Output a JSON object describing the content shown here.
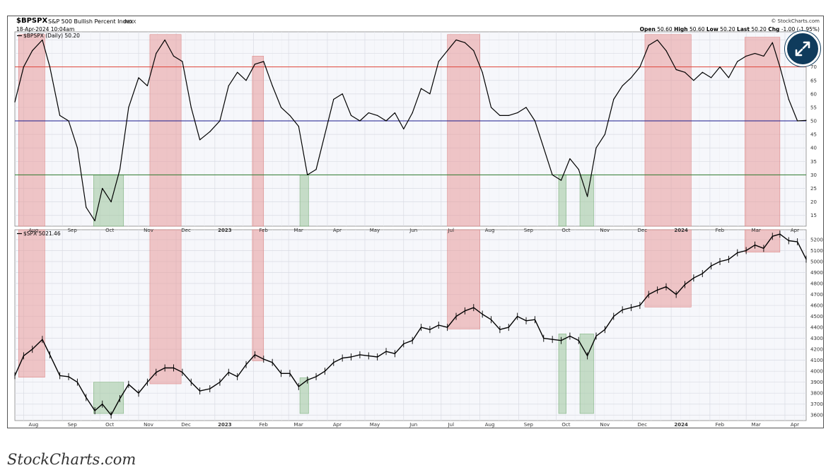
{
  "header": {
    "ticker": "$BPSPX",
    "name": "S&P 500 Bullish Percent Index",
    "exchange": "INDX",
    "timestamp": "18-Apr-2024 10:04am",
    "copyright": "© StockCharts.com",
    "quote_open_label": "Open",
    "quote_open": "50.60",
    "quote_high_label": "High",
    "quote_high": "50.60",
    "quote_low_label": "Low",
    "quote_low": "50.20",
    "quote_last_label": "Last",
    "quote_last": "50.20",
    "quote_chg_label": "Chg",
    "quote_chg": "-1.00 (-1.95%)"
  },
  "footer": {
    "brand": "StockCharts.com"
  },
  "expand_icon": "expand-arrows-icon",
  "colors": {
    "red_zone": "#e89a9a",
    "green_zone": "#9cc79c",
    "line_70": "#e0453a",
    "line_50": "#1a1a8c",
    "line_30": "#2e7a2e",
    "price": "#000000",
    "button": "#0f3b5c"
  },
  "chart_data": [
    {
      "type": "line",
      "title": "$BPSPX (Daily) 50.20",
      "x_ticks": [
        "Aug",
        "Sep",
        "Oct",
        "Nov",
        "Dec",
        "2023",
        "Feb",
        "Mar",
        "Apr",
        "May",
        "Jun",
        "Jul",
        "Aug",
        "Sep",
        "Oct",
        "Nov",
        "Dec",
        "2024",
        "Feb",
        "Mar",
        "Apr"
      ],
      "y_ticks": [
        15,
        20,
        25,
        30,
        35,
        40,
        45,
        50,
        55,
        60,
        65,
        70,
        75,
        80
      ],
      "ylim": [
        11,
        83
      ],
      "reference_lines": [
        70,
        50,
        30
      ],
      "x_range": [
        "2022-07-25",
        "2024-04-18"
      ],
      "series": [
        {
          "x": [
            "2022-07-25",
            "2022-08-01",
            "2022-08-08",
            "2022-08-16",
            "2022-08-22",
            "2022-08-30",
            "2022-09-06",
            "2022-09-13",
            "2022-09-20",
            "2022-09-27",
            "2022-10-03",
            "2022-10-10",
            "2022-10-17",
            "2022-10-24",
            "2022-11-01",
            "2022-11-08",
            "2022-11-15",
            "2022-11-22",
            "2022-11-29",
            "2022-12-06",
            "2022-12-13",
            "2022-12-20",
            "2022-12-28",
            "2023-01-05",
            "2023-01-12",
            "2023-01-19",
            "2023-01-26",
            "2023-02-02",
            "2023-02-09",
            "2023-02-16",
            "2023-02-23",
            "2023-03-02",
            "2023-03-09",
            "2023-03-16",
            "2023-03-23",
            "2023-03-30",
            "2023-04-06",
            "2023-04-13",
            "2023-04-20",
            "2023-04-27",
            "2023-05-04",
            "2023-05-11",
            "2023-05-18",
            "2023-05-25",
            "2023-06-01",
            "2023-06-08",
            "2023-06-15",
            "2023-06-22",
            "2023-06-29",
            "2023-07-06",
            "2023-07-13",
            "2023-07-20",
            "2023-07-27",
            "2023-08-03",
            "2023-08-10",
            "2023-08-17",
            "2023-08-24",
            "2023-08-31",
            "2023-09-07",
            "2023-09-14",
            "2023-09-21",
            "2023-09-28",
            "2023-10-05",
            "2023-10-12",
            "2023-10-19",
            "2023-10-26",
            "2023-11-02",
            "2023-11-09",
            "2023-11-16",
            "2023-11-23",
            "2023-11-30",
            "2023-12-07",
            "2023-12-14",
            "2023-12-21",
            "2023-12-28",
            "2024-01-05",
            "2024-01-12",
            "2024-01-19",
            "2024-01-26",
            "2024-02-02",
            "2024-02-09",
            "2024-02-16",
            "2024-02-23",
            "2024-03-01",
            "2024-03-08",
            "2024-03-15",
            "2024-03-22",
            "2024-03-28",
            "2024-04-04",
            "2024-04-11",
            "2024-04-18"
          ],
          "values": [
            57,
            70,
            76,
            80,
            70,
            52,
            50,
            40,
            18,
            13,
            25,
            20,
            32,
            55,
            66,
            63,
            75,
            80,
            74,
            72,
            55,
            43,
            46,
            50,
            63,
            68,
            65,
            71,
            72,
            63,
            55,
            52,
            48,
            30,
            32,
            45,
            58,
            60,
            52,
            50,
            53,
            52,
            50,
            53,
            47,
            53,
            62,
            60,
            72,
            76,
            80,
            79,
            76,
            68,
            55,
            52,
            52,
            53,
            55,
            50,
            40,
            30,
            28,
            36,
            32,
            22,
            40,
            45,
            58,
            63,
            66,
            70,
            78,
            80,
            76,
            69,
            68,
            65,
            68,
            66,
            70,
            66,
            72,
            74,
            75,
            74,
            79,
            70,
            58,
            50,
            50.2
          ]
        }
      ]
    },
    {
      "type": "line",
      "title": "$SPX 5021.46",
      "x_ticks": [
        "Aug",
        "Sep",
        "Oct",
        "Nov",
        "Dec",
        "2023",
        "Feb",
        "Mar",
        "Apr",
        "May",
        "Jun",
        "Jul",
        "Aug",
        "Sep",
        "Oct",
        "Nov",
        "Dec",
        "2024",
        "Feb",
        "Mar",
        "Apr"
      ],
      "y_ticks": [
        3600,
        3700,
        3800,
        3900,
        4000,
        4100,
        4200,
        4300,
        4400,
        4500,
        4600,
        4700,
        4800,
        4900,
        5000,
        5100,
        5200
      ],
      "ylim": [
        3550,
        5290
      ],
      "x_range": [
        "2022-07-25",
        "2024-04-18"
      ],
      "series": [
        {
          "x": [
            "2022-07-25",
            "2022-08-01",
            "2022-08-08",
            "2022-08-16",
            "2022-08-22",
            "2022-08-30",
            "2022-09-06",
            "2022-09-13",
            "2022-09-20",
            "2022-09-27",
            "2022-10-03",
            "2022-10-10",
            "2022-10-17",
            "2022-10-24",
            "2022-11-01",
            "2022-11-08",
            "2022-11-15",
            "2022-11-22",
            "2022-11-29",
            "2022-12-06",
            "2022-12-13",
            "2022-12-20",
            "2022-12-28",
            "2023-01-05",
            "2023-01-12",
            "2023-01-19",
            "2023-01-26",
            "2023-02-02",
            "2023-02-09",
            "2023-02-16",
            "2023-02-23",
            "2023-03-02",
            "2023-03-09",
            "2023-03-16",
            "2023-03-23",
            "2023-03-30",
            "2023-04-06",
            "2023-04-13",
            "2023-04-20",
            "2023-04-27",
            "2023-05-04",
            "2023-05-11",
            "2023-05-18",
            "2023-05-25",
            "2023-06-01",
            "2023-06-08",
            "2023-06-15",
            "2023-06-22",
            "2023-06-29",
            "2023-07-06",
            "2023-07-13",
            "2023-07-20",
            "2023-07-27",
            "2023-08-03",
            "2023-08-10",
            "2023-08-17",
            "2023-08-24",
            "2023-08-31",
            "2023-09-07",
            "2023-09-14",
            "2023-09-21",
            "2023-09-28",
            "2023-10-05",
            "2023-10-12",
            "2023-10-19",
            "2023-10-26",
            "2023-11-02",
            "2023-11-09",
            "2023-11-16",
            "2023-11-23",
            "2023-11-30",
            "2023-12-07",
            "2023-12-14",
            "2023-12-21",
            "2023-12-28",
            "2024-01-05",
            "2024-01-12",
            "2024-01-19",
            "2024-01-26",
            "2024-02-02",
            "2024-02-09",
            "2024-02-16",
            "2024-02-23",
            "2024-03-01",
            "2024-03-08",
            "2024-03-15",
            "2024-03-22",
            "2024-03-28",
            "2024-04-04",
            "2024-04-11",
            "2024-04-18"
          ],
          "values": [
            3960,
            4140,
            4200,
            4290,
            4150,
            3960,
            3950,
            3900,
            3760,
            3640,
            3700,
            3600,
            3750,
            3880,
            3800,
            3900,
            3990,
            4030,
            4030,
            3990,
            3900,
            3820,
            3840,
            3900,
            3990,
            3950,
            4060,
            4150,
            4110,
            4080,
            3980,
            3980,
            3860,
            3920,
            3950,
            4000,
            4080,
            4120,
            4130,
            4150,
            4140,
            4130,
            4180,
            4160,
            4250,
            4280,
            4400,
            4380,
            4420,
            4400,
            4500,
            4550,
            4580,
            4520,
            4470,
            4380,
            4400,
            4500,
            4460,
            4470,
            4300,
            4290,
            4280,
            4320,
            4280,
            4140,
            4320,
            4380,
            4500,
            4560,
            4580,
            4600,
            4700,
            4740,
            4770,
            4700,
            4790,
            4850,
            4890,
            4960,
            5000,
            5020,
            5080,
            5100,
            5150,
            5120,
            5230,
            5250,
            5190,
            5180,
            5021.46
          ]
        }
      ]
    }
  ],
  "zones": {
    "red": [
      [
        "2022-07-28",
        "2022-08-18"
      ],
      [
        "2022-11-10",
        "2022-12-05"
      ],
      [
        "2023-01-31",
        "2023-02-09"
      ],
      [
        "2023-07-06",
        "2023-08-01"
      ],
      [
        "2023-12-11",
        "2024-01-17"
      ],
      [
        "2024-02-29",
        "2024-03-28"
      ]
    ],
    "green": [
      [
        "2022-09-26",
        "2022-10-20"
      ],
      [
        "2023-03-10",
        "2023-03-17"
      ],
      [
        "2023-10-03",
        "2023-10-09"
      ],
      [
        "2023-10-20",
        "2023-10-31"
      ]
    ]
  }
}
